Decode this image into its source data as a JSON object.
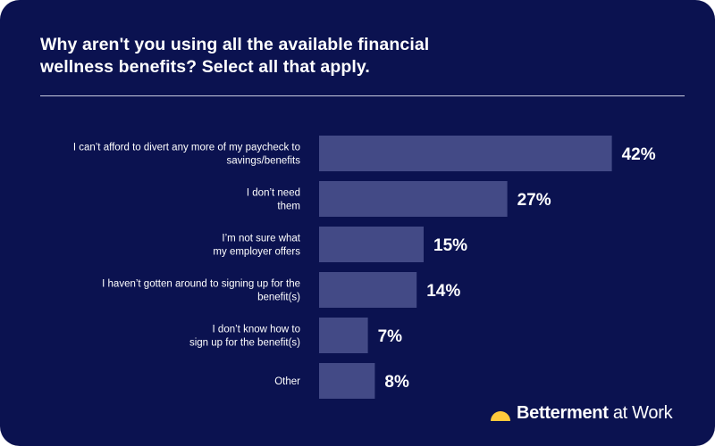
{
  "title": "Why aren't you using all the available financial wellness benefits? Select all that apply.",
  "brand": {
    "name": "Betterment",
    "suffix": " at Work",
    "icon": "sun-icon",
    "icon_color": "#ffc93c"
  },
  "colors": {
    "background": "#0b1250",
    "bar": "#434a86",
    "text": "#ffffff"
  },
  "chart_data": {
    "type": "bar",
    "orientation": "horizontal",
    "title": "Why aren't you using all the available financial wellness benefits? Select all that apply.",
    "xlabel": "",
    "ylabel": "",
    "categories": [
      [
        "I can’t afford to divert any more of my paycheck to",
        "savings/benefits"
      ],
      [
        "I don’t need",
        "them"
      ],
      [
        "I’m not sure what",
        "my employer offers"
      ],
      [
        "I haven’t gotten around to signing up for the",
        "benefit(s)"
      ],
      [
        "I don’t know how to",
        "sign up for the benefit(s)"
      ],
      [
        "Other"
      ]
    ],
    "values": [
      42,
      27,
      15,
      14,
      7,
      8
    ],
    "value_labels": [
      "42%",
      "27%",
      "15%",
      "14%",
      "7%",
      "8%"
    ],
    "unit": "%",
    "grid": false,
    "legend": "none"
  }
}
